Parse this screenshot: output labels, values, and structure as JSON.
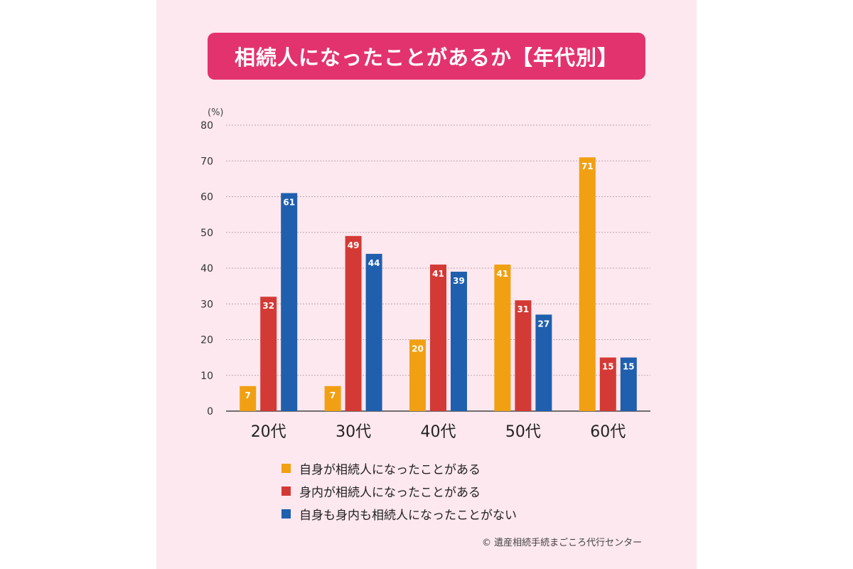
{
  "colors": {
    "panel_bg": "#fde8ef",
    "title_bg": "#e3336f",
    "self": "#f0a012",
    "relative": "#d33a36",
    "none": "#1f5fae"
  },
  "chart_data": {
    "type": "bar",
    "title": "相続人になったことがあるか【年代別】",
    "ylabel": "(%)",
    "xlabel": "",
    "ylim": [
      0,
      80
    ],
    "yticks": [
      0,
      10,
      20,
      30,
      40,
      50,
      60,
      70,
      80
    ],
    "grid": true,
    "legend_position": "bottom",
    "categories": [
      "20代",
      "30代",
      "40代",
      "50代",
      "60代"
    ],
    "series": [
      {
        "name": "自身が相続人になったことがある",
        "color_key": "self",
        "values": [
          7,
          7,
          20,
          41,
          71
        ]
      },
      {
        "name": "身内が相続人になったことがある",
        "color_key": "relative",
        "values": [
          32,
          49,
          41,
          31,
          15
        ]
      },
      {
        "name": "自身も身内も相続人になったことがない",
        "color_key": "none",
        "values": [
          61,
          44,
          39,
          27,
          15
        ]
      }
    ]
  },
  "credit": "© 遺産相続手続まごころ代行センター"
}
